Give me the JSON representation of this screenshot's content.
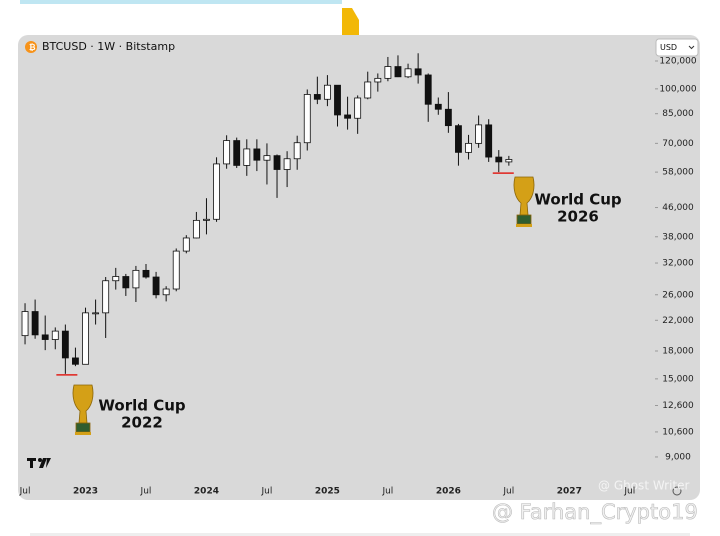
{
  "chart_data": {
    "type": "candlestick",
    "title": "BTCUSD · 1W · Bitstamp",
    "currency": "USD",
    "log_scale": true,
    "up_color": "#ffffff",
    "down_color": "#111111",
    "marker_color": "#e0201b",
    "categories": [
      "Jul",
      null,
      null,
      null,
      null,
      null,
      "2023",
      null,
      null,
      null,
      null,
      null,
      "Jul",
      null,
      null,
      null,
      null,
      null,
      "2024",
      null,
      null,
      null,
      null,
      null,
      "Jul",
      null,
      null,
      null,
      null,
      null,
      "2025",
      null,
      null,
      null,
      null,
      null,
      "Jul",
      null,
      null,
      null,
      null,
      null,
      "2026",
      null,
      null,
      null,
      null,
      null,
      "Jul",
      null,
      null,
      null,
      null,
      null,
      "2027",
      null,
      null,
      null,
      null,
      null,
      "Jul",
      null,
      null
    ],
    "open": [
      19900,
      23300,
      20000,
      19400,
      20500,
      17200,
      16500,
      23100,
      23100,
      28500,
      29300,
      27200,
      30500,
      29200,
      26000,
      27000,
      34600,
      37700,
      42300,
      42600,
      61200,
      71300,
      60600,
      67500,
      62700,
      64600,
      59000,
      63300,
      70300,
      96400,
      93400,
      102400,
      84300,
      82500,
      94200,
      104600,
      107100,
      115700,
      108200,
      114000,
      109500,
      90400,
      87500,
      78600,
      66000,
      70000,
      79000,
      64000,
      62000,
      null,
      null,
      null,
      null,
      null,
      null,
      null,
      null,
      null,
      null,
      null,
      null,
      null,
      null
    ],
    "high": [
      24600,
      25200,
      22700,
      21000,
      21400,
      18400,
      23900,
      25200,
      29200,
      31000,
      29800,
      31400,
      31800,
      30200,
      27500,
      35200,
      38400,
      44700,
      48900,
      63900,
      73800,
      72700,
      71900,
      71900,
      70000,
      65100,
      66500,
      73600,
      99600,
      108300,
      109400,
      102500,
      95000,
      95800,
      111900,
      110600,
      123200,
      124500,
      117900,
      126200,
      110600,
      94500,
      97900,
      79500,
      74000,
      84000,
      82000,
      67000,
      64500,
      null,
      null,
      null,
      null,
      null,
      null,
      null,
      null,
      null,
      null,
      null,
      null,
      null,
      null
    ],
    "low": [
      18800,
      19500,
      18100,
      18200,
      15500,
      16300,
      16500,
      21400,
      19600,
      26900,
      25800,
      24800,
      28900,
      25400,
      24900,
      26600,
      34100,
      37600,
      38600,
      41900,
      59300,
      59600,
      56600,
      58400,
      53500,
      49000,
      52600,
      58900,
      66800,
      90500,
      89300,
      78200,
      76600,
      74500,
      93400,
      98200,
      105100,
      108000,
      107300,
      103500,
      80600,
      84400,
      75000,
      60500,
      63000,
      68000,
      62000,
      58000,
      60500,
      null,
      null,
      null,
      null,
      null,
      null,
      null,
      null,
      null,
      null,
      null,
      null,
      null,
      null
    ],
    "close": [
      23300,
      20000,
      19400,
      20500,
      17200,
      16500,
      23100,
      23100,
      28500,
      29300,
      27200,
      30500,
      29200,
      26000,
      27000,
      34600,
      37700,
      42300,
      42600,
      61200,
      71300,
      60600,
      67500,
      62700,
      64600,
      59000,
      63300,
      70300,
      96400,
      93400,
      102400,
      84300,
      82500,
      94200,
      104600,
      107100,
      115700,
      108200,
      114000,
      109500,
      90400,
      87500,
      78600,
      66000,
      70000,
      79000,
      64000,
      62000,
      63000,
      null,
      null,
      null,
      null,
      null,
      null,
      null,
      null,
      null,
      null,
      null,
      null,
      null,
      null
    ],
    "ylim": [
      7740,
      141300
    ],
    "yticks": [
      {
        "value": 9000,
        "label": "9,000"
      },
      {
        "value": 10600,
        "label": "10,600"
      },
      {
        "value": 12600,
        "label": "12,600"
      },
      {
        "value": 15000,
        "label": "15,000"
      },
      {
        "value": 18000,
        "label": "18,000"
      },
      {
        "value": 22000,
        "label": "22,000"
      },
      {
        "value": 26000,
        "label": "26,000"
      },
      {
        "value": 32000,
        "label": "32,000"
      },
      {
        "value": 38000,
        "label": "38,000"
      },
      {
        "value": 46000,
        "label": "46,000"
      },
      {
        "value": 58000,
        "label": "58,000"
      },
      {
        "value": 70000,
        "label": "70,000"
      },
      {
        "value": 85000,
        "label": "85,000"
      },
      {
        "value": 100000,
        "label": "100,000"
      },
      {
        "value": 120000,
        "label": "120,000"
      }
    ],
    "annotations": [
      {
        "lines": [
          "World Cup",
          "2022"
        ]
      },
      {
        "lines": [
          "World Cup",
          "2026"
        ]
      }
    ],
    "watermarks": [
      "@ Ghost Writer",
      "@ Farhan_Crypto19"
    ]
  }
}
